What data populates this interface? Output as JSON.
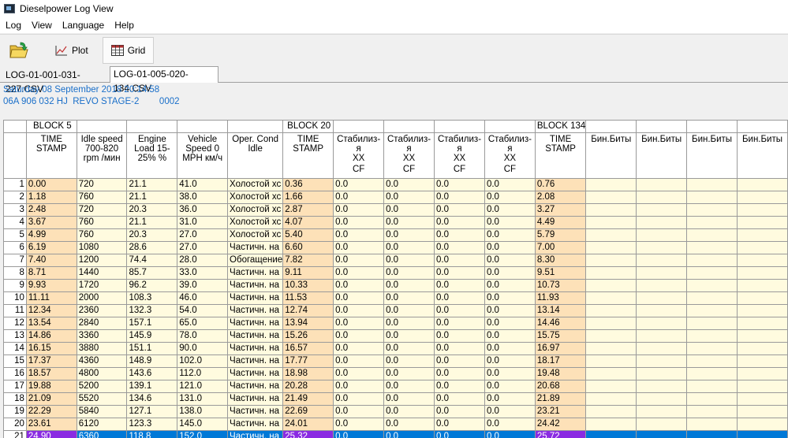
{
  "window": {
    "title": "Dieselpower Log View"
  },
  "menu": [
    "Log",
    "View",
    "Language",
    "Help"
  ],
  "toolbar": {
    "plot_label": "Plot",
    "grid_label": "Grid"
  },
  "tabs": [
    {
      "label": "LOG-01-001-031-227.CSV",
      "active": false
    },
    {
      "label": "LOG-01-005-020-134.CSV",
      "active": true
    }
  ],
  "info": {
    "date": "Saturday 08 September 2018 20:14:58",
    "vehicle": "06A 906 032 HJ  REVO STAGE-2        0002"
  },
  "grid": {
    "blocks": [
      "BLOCK 5",
      "BLOCK 20",
      "BLOCK 134"
    ],
    "headers": {
      "b5_time": "TIME STAMP",
      "idle_speed": "Idle speed 700-820 rpm /мин",
      "engine_load": "Engine Load 15-25% %",
      "vehicle_speed": "Vehicle Speed 0 MPH км/ч",
      "oper_cond": "Oper. Cond Idle",
      "b20_time": "TIME STAMP",
      "stab1": "Стабилиз-я",
      "stab2": "Стабилиз-я",
      "stab3": "Стабилиз-я",
      "stab4": "Стабилиз-я",
      "stab_xx": "ХХ",
      "stab_cf": "CF",
      "b134_time": "TIME STAMP",
      "bin1": "Бин.Биты",
      "bin2": "Бин.Биты",
      "bin3": "Бин.Биты",
      "bin4": "Бин.Биты"
    },
    "rows": [
      [
        "1",
        "0.00",
        "720",
        "21.1",
        "41.0",
        "Холостой хс",
        "0.36",
        "0.0",
        "0.0",
        "0.0",
        "0.0",
        "0.76"
      ],
      [
        "2",
        "1.18",
        "760",
        "21.1",
        "38.0",
        "Холостой хс",
        "1.66",
        "0.0",
        "0.0",
        "0.0",
        "0.0",
        "2.08"
      ],
      [
        "3",
        "2.48",
        "720",
        "20.3",
        "36.0",
        "Холостой хс",
        "2.87",
        "0.0",
        "0.0",
        "0.0",
        "0.0",
        "3.27"
      ],
      [
        "4",
        "3.67",
        "760",
        "21.1",
        "31.0",
        "Холостой хс",
        "4.07",
        "0.0",
        "0.0",
        "0.0",
        "0.0",
        "4.49"
      ],
      [
        "5",
        "4.99",
        "760",
        "20.3",
        "27.0",
        "Холостой хс",
        "5.40",
        "0.0",
        "0.0",
        "0.0",
        "0.0",
        "5.79"
      ],
      [
        "6",
        "6.19",
        "1080",
        "28.6",
        "27.0",
        "Частичн. на",
        "6.60",
        "0.0",
        "0.0",
        "0.0",
        "0.0",
        "7.00"
      ],
      [
        "7",
        "7.40",
        "1200",
        "74.4",
        "28.0",
        "Обогащение",
        "7.82",
        "0.0",
        "0.0",
        "0.0",
        "0.0",
        "8.30"
      ],
      [
        "8",
        "8.71",
        "1440",
        "85.7",
        "33.0",
        "Частичн. на",
        "9.11",
        "0.0",
        "0.0",
        "0.0",
        "0.0",
        "9.51"
      ],
      [
        "9",
        "9.93",
        "1720",
        "96.2",
        "39.0",
        "Частичн. на",
        "10.33",
        "0.0",
        "0.0",
        "0.0",
        "0.0",
        "10.73"
      ],
      [
        "10",
        "11.11",
        "2000",
        "108.3",
        "46.0",
        "Частичн. на",
        "11.53",
        "0.0",
        "0.0",
        "0.0",
        "0.0",
        "11.93"
      ],
      [
        "11",
        "12.34",
        "2360",
        "132.3",
        "54.0",
        "Частичн. на",
        "12.74",
        "0.0",
        "0.0",
        "0.0",
        "0.0",
        "13.14"
      ],
      [
        "12",
        "13.54",
        "2840",
        "157.1",
        "65.0",
        "Частичн. на",
        "13.94",
        "0.0",
        "0.0",
        "0.0",
        "0.0",
        "14.46"
      ],
      [
        "13",
        "14.86",
        "3360",
        "145.9",
        "78.0",
        "Частичн. на",
        "15.26",
        "0.0",
        "0.0",
        "0.0",
        "0.0",
        "15.75"
      ],
      [
        "14",
        "16.15",
        "3880",
        "151.1",
        "90.0",
        "Частичн. на",
        "16.57",
        "0.0",
        "0.0",
        "0.0",
        "0.0",
        "16.97"
      ],
      [
        "15",
        "17.37",
        "4360",
        "148.9",
        "102.0",
        "Частичн. на",
        "17.77",
        "0.0",
        "0.0",
        "0.0",
        "0.0",
        "18.17"
      ],
      [
        "16",
        "18.57",
        "4800",
        "143.6",
        "112.0",
        "Частичн. на",
        "18.98",
        "0.0",
        "0.0",
        "0.0",
        "0.0",
        "19.48"
      ],
      [
        "17",
        "19.88",
        "5200",
        "139.1",
        "121.0",
        "Частичн. на",
        "20.28",
        "0.0",
        "0.0",
        "0.0",
        "0.0",
        "20.68"
      ],
      [
        "18",
        "21.09",
        "5520",
        "134.6",
        "131.0",
        "Частичн. на",
        "21.49",
        "0.0",
        "0.0",
        "0.0",
        "0.0",
        "21.89"
      ],
      [
        "19",
        "22.29",
        "5840",
        "127.1",
        "138.0",
        "Частичн. на",
        "22.69",
        "0.0",
        "0.0",
        "0.0",
        "0.0",
        "23.21"
      ],
      [
        "20",
        "23.61",
        "6120",
        "123.3",
        "145.0",
        "Частичн. на",
        "24.01",
        "0.0",
        "0.0",
        "0.0",
        "0.0",
        "24.42"
      ],
      [
        "21",
        "24.90",
        "6360",
        "118.8",
        "152.0",
        "Частичн. на",
        "25.32",
        "0.0",
        "0.0",
        "0.0",
        "0.0",
        "25.72"
      ]
    ],
    "selected_row": 21
  },
  "colors": {
    "info_text": "#1a6fc9",
    "cell_bg": "#fffbdf",
    "timestamp_bg": "#fde1b8",
    "selected_row": "#0078d7",
    "selected_timestamp": "#8a2be2"
  },
  "icons": {
    "open": "folder-open-icon",
    "plot": "chart-icon",
    "grid": "table-icon",
    "app": "app-icon"
  }
}
